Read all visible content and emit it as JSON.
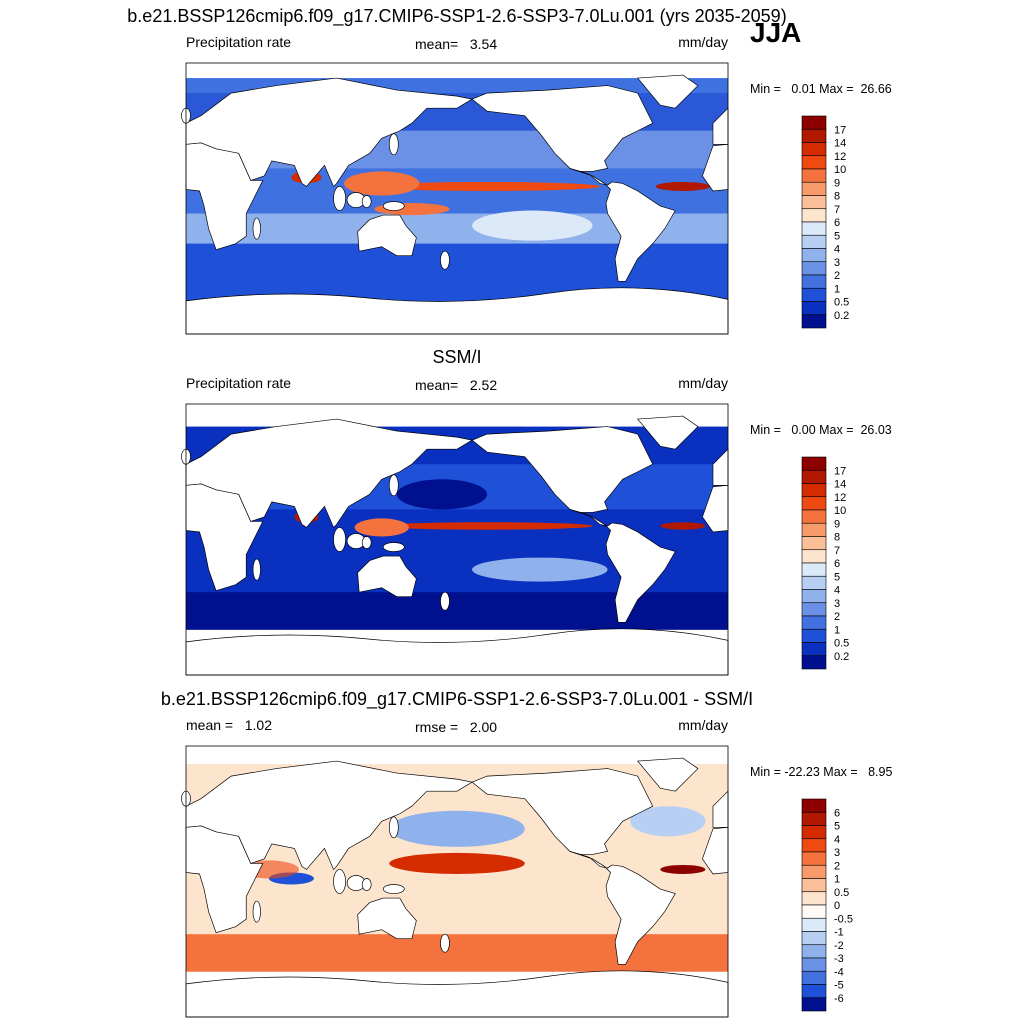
{
  "season": "JJA",
  "panels": [
    {
      "title": "b.e21.BSSP126cmip6.f09_g17.CMIP6-SSP1-2.6-SSP3-7.0Lu.001 (yrs 2035-2059)",
      "left": "Precipitation rate",
      "center": "mean=   3.54",
      "right": "mm/day",
      "minmax": "Min =   0.01 Max =  26.66",
      "colorbar": {
        "labels": [
          "17",
          "14",
          "12",
          "10",
          "9",
          "8",
          "7",
          "6",
          "5",
          "4",
          "3",
          "2",
          "1",
          "0.5",
          "0.2"
        ],
        "colors": [
          "#8c0000",
          "#b01800",
          "#d42c00",
          "#ee4a12",
          "#f4723e",
          "#f89b6c",
          "#fbc09a",
          "#fde4cc",
          "#dce9f9",
          "#b6cff3",
          "#8fb1ec",
          "#6a91e6",
          "#4471e0",
          "#1f50d8",
          "#0a30c0",
          "#00108f"
        ]
      }
    },
    {
      "title": "SSM/I",
      "left": "Precipitation rate",
      "center": "mean=   2.52",
      "right": "mm/day",
      "minmax": "Min =   0.00 Max =  26.03",
      "colorbar": {
        "labels": [
          "17",
          "14",
          "12",
          "10",
          "9",
          "8",
          "7",
          "6",
          "5",
          "4",
          "3",
          "2",
          "1",
          "0.5",
          "0.2"
        ],
        "colors": [
          "#8c0000",
          "#b01800",
          "#d42c00",
          "#ee4a12",
          "#f4723e",
          "#f89b6c",
          "#fbc09a",
          "#fde4cc",
          "#dce9f9",
          "#b6cff3",
          "#8fb1ec",
          "#6a91e6",
          "#4471e0",
          "#1f50d8",
          "#0a30c0",
          "#00108f"
        ]
      }
    },
    {
      "title": "b.e21.BSSP126cmip6.f09_g17.CMIP6-SSP1-2.6-SSP3-7.0Lu.001 - SSM/I",
      "left": "mean =   1.02",
      "center": "rmse =   2.00",
      "right": "mm/day",
      "minmax": "Min = -22.23 Max =   8.95",
      "colorbar": {
        "labels": [
          "6",
          "5",
          "4",
          "3",
          "2",
          "1",
          "0.5",
          "0",
          "-0.5",
          "-1",
          "-2",
          "-3",
          "-4",
          "-5",
          "-6"
        ],
        "colors": [
          "#8c0000",
          "#b01800",
          "#d42c00",
          "#ee4a12",
          "#f4723e",
          "#f89b6c",
          "#fbc09a",
          "#fde4cc",
          "#fffaf5",
          "#dce9f9",
          "#b6cff3",
          "#8fb1ec",
          "#6a91e6",
          "#4471e0",
          "#1f50d8",
          "#00108f"
        ]
      }
    }
  ]
}
